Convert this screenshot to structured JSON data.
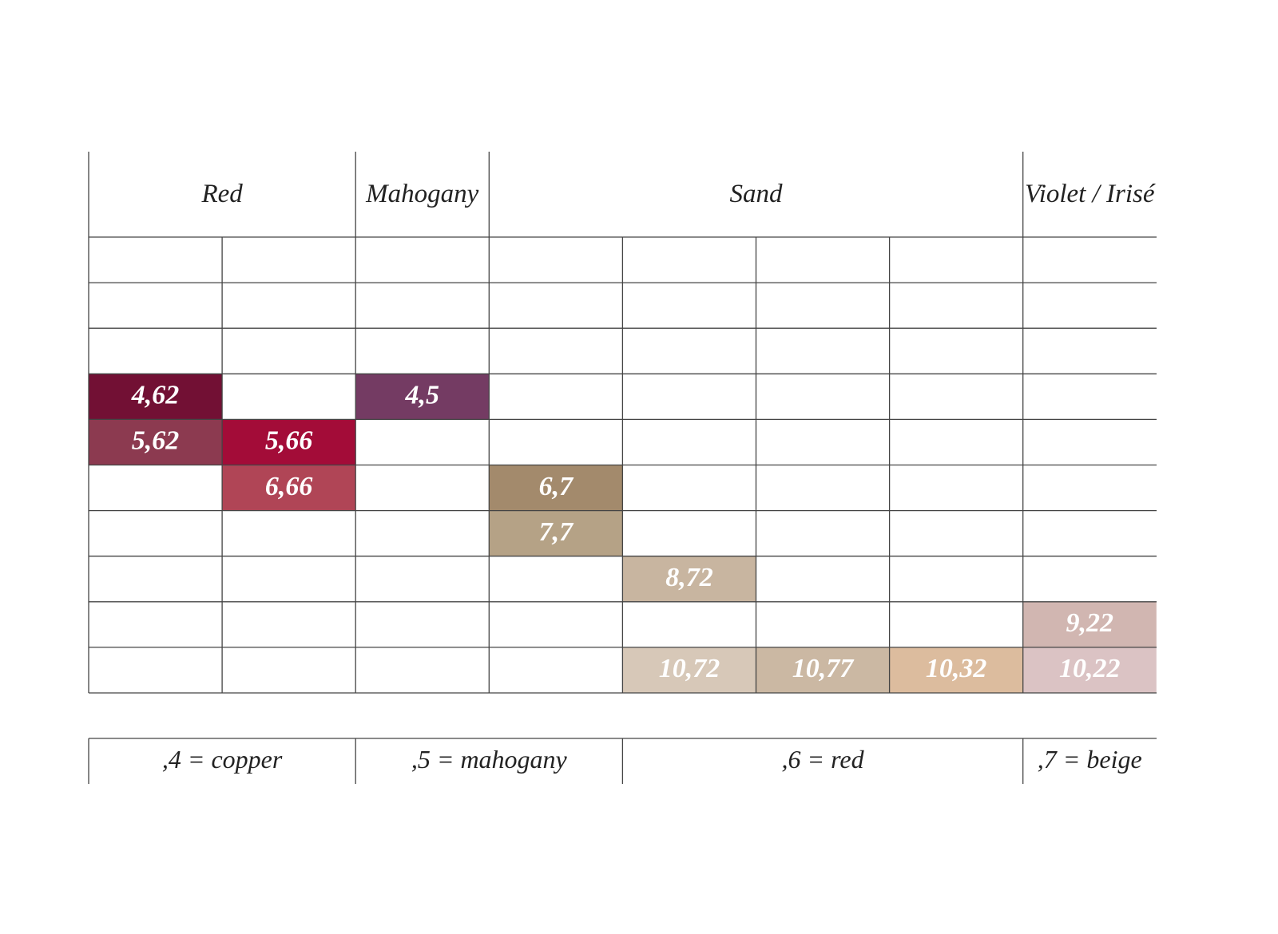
{
  "table": {
    "headers": [
      "Red",
      "Mahogany",
      "Sand",
      "Violet / Irisé"
    ],
    "rows": [
      [
        null,
        null,
        null,
        null,
        null,
        null,
        null,
        null
      ],
      [
        null,
        null,
        null,
        null,
        null,
        null,
        null,
        null
      ],
      [
        null,
        null,
        null,
        null,
        null,
        null,
        null,
        null
      ],
      [
        {
          "text": "4,62",
          "color": "#721034"
        },
        null,
        {
          "text": "4,5",
          "color": "#743b63"
        },
        null,
        null,
        null,
        null,
        null
      ],
      [
        {
          "text": "5,62",
          "color": "#8c3a50"
        },
        {
          "text": "5,66",
          "color": "#a30c38"
        },
        null,
        null,
        null,
        null,
        null,
        null
      ],
      [
        null,
        {
          "text": "6,66",
          "color": "#b04556"
        },
        null,
        {
          "text": "6,7",
          "color": "#a38a6c"
        },
        null,
        null,
        null,
        null
      ],
      [
        null,
        null,
        null,
        {
          "text": "7,7",
          "color": "#b5a286"
        },
        null,
        null,
        null,
        null
      ],
      [
        null,
        null,
        null,
        null,
        {
          "text": "8,72",
          "color": "#c8b5a0"
        },
        null,
        null,
        null
      ],
      [
        null,
        null,
        null,
        null,
        null,
        null,
        null,
        {
          "text": "9,22",
          "color": "#d1b6b1"
        }
      ],
      [
        null,
        null,
        null,
        null,
        {
          "text": "10,72",
          "color": "#d7c8b8"
        },
        {
          "text": "10,77",
          "color": "#cbb8a3"
        },
        {
          "text": "10,32",
          "color": "#dcbc9e"
        },
        {
          "text": "10,22",
          "color": "#dbc3c4"
        }
      ]
    ],
    "legend": [
      ",4 = copper",
      ",5 = mahogany",
      ",6 = red",
      ",7 = beige"
    ]
  }
}
